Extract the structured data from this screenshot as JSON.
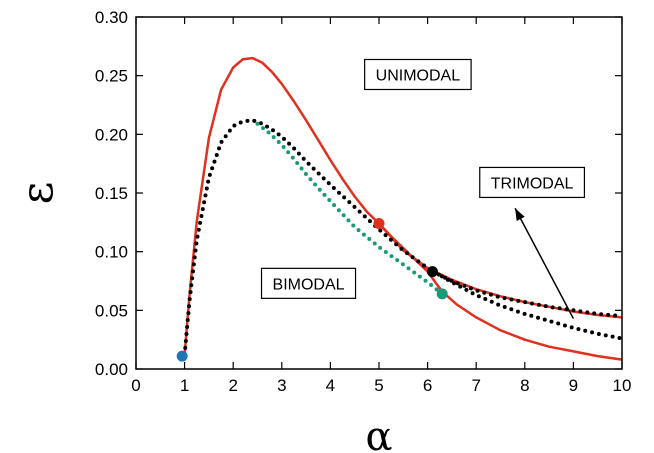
{
  "chart_data": {
    "type": "line",
    "xlabel": "α",
    "ylabel": "ε",
    "xlim": [
      0,
      10
    ],
    "ylim": [
      0,
      0.3
    ],
    "x_ticks": [
      0,
      1,
      2,
      3,
      4,
      5,
      6,
      7,
      8,
      9,
      10
    ],
    "y_ticks": [
      "0.00",
      "0.05",
      "0.10",
      "0.15",
      "0.20",
      "0.25",
      "0.30"
    ],
    "grid": false,
    "colors": {
      "red": "#e0301e",
      "black": "#000000",
      "green": "#1a9a78",
      "blue": "#1f78b4"
    },
    "series": [
      {
        "style": "solid",
        "color": "#e0301e",
        "x": [
          1.0,
          1.1,
          1.25,
          1.5,
          1.75,
          2.0,
          2.2,
          2.4,
          2.6,
          2.8,
          3.0,
          3.25,
          3.5,
          3.75,
          4.0,
          4.25,
          4.5,
          4.75,
          5.0,
          5.25,
          5.5,
          5.75,
          6.0,
          6.3,
          6.6,
          7.0,
          7.5,
          8.0,
          8.5,
          9.0,
          9.5,
          10.0
        ],
        "y": [
          0.012,
          0.063,
          0.126,
          0.197,
          0.238,
          0.257,
          0.264,
          0.265,
          0.261,
          0.253,
          0.243,
          0.228,
          0.212,
          0.195,
          0.178,
          0.162,
          0.147,
          0.134,
          0.124,
          0.113,
          0.103,
          0.093,
          0.083,
          0.066,
          0.055,
          0.044,
          0.033,
          0.025,
          0.019,
          0.015,
          0.011,
          0.008
        ]
      },
      {
        "style": "solid",
        "color": "#e0301e",
        "x": [
          5.0,
          5.5,
          6.0,
          6.5,
          7.0,
          7.5,
          8.0,
          8.5,
          9.0,
          9.5,
          10.0
        ],
        "y": [
          0.124,
          0.101,
          0.086,
          0.076,
          0.068,
          0.062,
          0.057,
          0.053,
          0.049,
          0.046,
          0.044
        ]
      },
      {
        "style": "dotted",
        "color": "#000000",
        "x": [
          1.0,
          1.1,
          1.25,
          1.5,
          1.75,
          2.0,
          2.2,
          2.4,
          2.6,
          2.8,
          3.0,
          3.25,
          3.5,
          3.75,
          4.0,
          4.5,
          5.0,
          5.5,
          6.0,
          6.5,
          7.0,
          7.5,
          8.0,
          8.5,
          9.0,
          9.5,
          10.0
        ],
        "y": [
          0.012,
          0.058,
          0.11,
          0.163,
          0.193,
          0.207,
          0.211,
          0.212,
          0.209,
          0.204,
          0.198,
          0.188,
          0.177,
          0.167,
          0.157,
          0.138,
          0.119,
          0.101,
          0.086,
          0.074,
          0.063,
          0.054,
          0.047,
          0.041,
          0.035,
          0.03,
          0.026
        ]
      },
      {
        "style": "dotted",
        "color": "#000000",
        "x": [
          6.1,
          6.5,
          7.0,
          7.5,
          8.0,
          8.5,
          9.0,
          9.5,
          10.0
        ],
        "y": [
          0.083,
          0.075,
          0.067,
          0.061,
          0.057,
          0.053,
          0.05,
          0.047,
          0.045
        ]
      },
      {
        "style": "dotted",
        "color": "#1a9a78",
        "x": [
          2.5,
          2.75,
          3.0,
          3.25,
          3.5,
          3.75,
          4.0,
          4.5,
          5.0,
          5.5,
          6.0,
          6.3
        ],
        "y": [
          0.209,
          0.201,
          0.191,
          0.179,
          0.166,
          0.154,
          0.143,
          0.121,
          0.104,
          0.089,
          0.074,
          0.064
        ]
      }
    ],
    "points": [
      {
        "x": 0.95,
        "y": 0.011,
        "color": "#1f78b4"
      },
      {
        "x": 5.0,
        "y": 0.124,
        "color": "#e0301e"
      },
      {
        "x": 6.1,
        "y": 0.083,
        "color": "#000000"
      },
      {
        "x": 6.3,
        "y": 0.064,
        "color": "#1a9a78"
      }
    ],
    "annotations": [
      {
        "text": "UNIMODAL",
        "x": 5.8,
        "y": 0.251
      },
      {
        "text": "TRIMODAL",
        "x": 8.15,
        "y": 0.159
      },
      {
        "text": "BIMODAL",
        "x": 3.55,
        "y": 0.073
      }
    ],
    "arrow": {
      "from": [
        9.0,
        0.043
      ],
      "to": [
        7.8,
        0.137
      ]
    }
  }
}
